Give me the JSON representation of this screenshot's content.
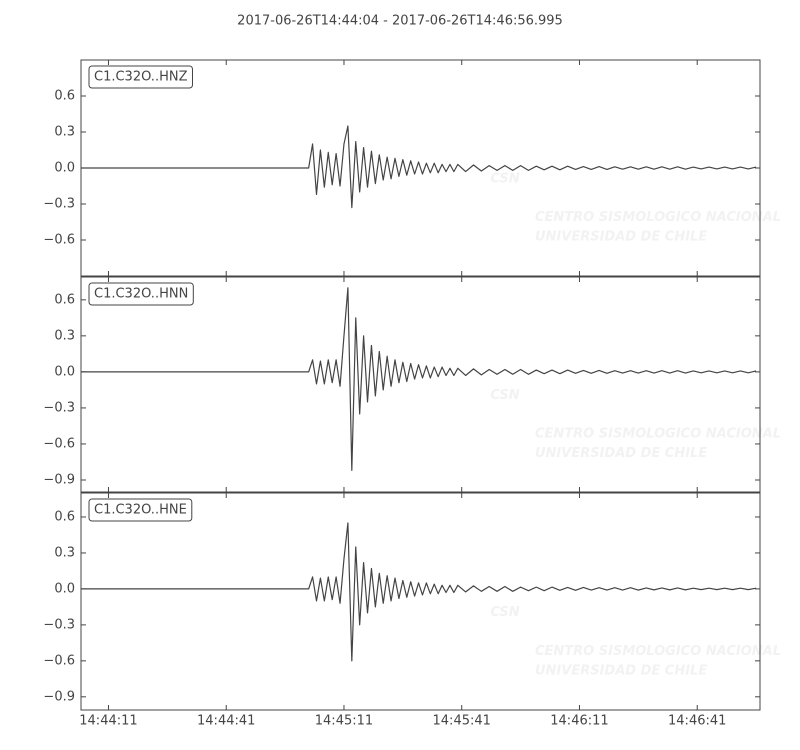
{
  "chart_data": {
    "type": "line",
    "title": "2017-06-26T14:44:04  -  2017-06-26T14:46:56.995",
    "xlim": [
      "14:44:04",
      "14:46:56.995"
    ],
    "xticks": [
      "14:44:11",
      "14:44:41",
      "14:45:11",
      "14:45:41",
      "14:46:11",
      "14:46:41"
    ],
    "watermark": [
      "CSN",
      "CENTRO SISMOLOGICO NACIONAL",
      "UNIVERSIDAD DE CHILE"
    ],
    "x": [
      "14:44:04",
      "14:45:02",
      "14:45:03",
      "14:45:04",
      "14:45:05",
      "14:45:06",
      "14:45:07",
      "14:45:08",
      "14:45:09",
      "14:45:10",
      "14:45:11",
      "14:45:12",
      "14:45:13",
      "14:45:14",
      "14:45:15",
      "14:45:16",
      "14:45:17",
      "14:45:18",
      "14:45:19",
      "14:45:20",
      "14:45:21",
      "14:45:22",
      "14:45:23",
      "14:45:24",
      "14:45:25",
      "14:45:26",
      "14:45:27",
      "14:45:28",
      "14:45:29",
      "14:45:30",
      "14:45:31",
      "14:45:32",
      "14:45:33",
      "14:45:34",
      "14:45:35",
      "14:45:36",
      "14:45:37",
      "14:45:38",
      "14:45:39",
      "14:45:40",
      "14:45:42",
      "14:45:44",
      "14:45:46",
      "14:45:48",
      "14:45:50",
      "14:45:52",
      "14:45:54",
      "14:45:56",
      "14:45:58",
      "14:46:00",
      "14:46:02",
      "14:46:04",
      "14:46:06",
      "14:46:08",
      "14:46:10",
      "14:46:12",
      "14:46:14",
      "14:46:16",
      "14:46:18",
      "14:46:20",
      "14:46:22",
      "14:46:24",
      "14:46:26",
      "14:46:28",
      "14:46:30",
      "14:46:32",
      "14:46:34",
      "14:46:36",
      "14:46:38",
      "14:46:40",
      "14:46:42",
      "14:46:44",
      "14:46:46",
      "14:46:48",
      "14:46:50",
      "14:46:52",
      "14:46:54",
      "14:46:56"
    ],
    "series": [
      {
        "name": "C1.C32O..HNZ",
        "color": "#444444",
        "ylim": [
          -0.9,
          0.9
        ],
        "yticks": [
          {
            "value": -0.6,
            "label": "−0.6"
          },
          {
            "value": -0.3,
            "label": "−0.3"
          },
          {
            "value": 0,
            "label": "0.0"
          },
          0.3,
          0.6
        ],
        "values": [
          0,
          0,
          0.2,
          -0.22,
          0.15,
          -0.16,
          0.13,
          -0.14,
          0.12,
          -0.15,
          0.2,
          0.35,
          -0.33,
          0.22,
          -0.2,
          0.17,
          -0.16,
          0.14,
          -0.13,
          0.11,
          -0.1,
          0.09,
          -0.09,
          0.08,
          -0.07,
          0.07,
          -0.06,
          0.06,
          -0.05,
          0.05,
          -0.05,
          0.04,
          -0.04,
          0.04,
          -0.04,
          0.03,
          -0.03,
          0.03,
          -0.03,
          0.03,
          -0.03,
          0.025,
          -0.025,
          0.02,
          -0.02,
          0.02,
          -0.02,
          0.02,
          -0.02,
          0.015,
          -0.015,
          0.015,
          -0.015,
          0.015,
          -0.012,
          0.012,
          -0.012,
          0.012,
          -0.012,
          0.01,
          -0.01,
          0.01,
          -0.01,
          0.01,
          -0.01,
          0.01,
          -0.01,
          0.01,
          -0.01,
          0.008,
          -0.008,
          0.008,
          -0.008,
          0.008,
          -0.008,
          0.008,
          -0.008,
          0.008
        ]
      },
      {
        "name": "C1.C32O..HNN",
        "color": "#444444",
        "ylim": [
          -1.0,
          0.79
        ],
        "yticks": [
          {
            "value": -0.9,
            "label": "−0.9"
          },
          {
            "value": -0.6,
            "label": "−0.6"
          },
          {
            "value": -0.3,
            "label": "−0.3"
          },
          {
            "value": 0,
            "label": "0.0"
          },
          0.3,
          0.6
        ],
        "values": [
          0,
          0,
          0.1,
          -0.1,
          0.09,
          -0.1,
          0.1,
          -0.09,
          0.1,
          -0.12,
          0.3,
          0.7,
          -0.82,
          0.45,
          -0.35,
          0.3,
          -0.25,
          0.22,
          -0.2,
          0.17,
          -0.15,
          0.13,
          -0.12,
          0.1,
          -0.09,
          0.08,
          -0.08,
          0.07,
          -0.06,
          0.06,
          -0.05,
          0.05,
          -0.05,
          0.04,
          -0.04,
          0.04,
          -0.03,
          0.03,
          -0.03,
          0.03,
          -0.03,
          0.025,
          -0.025,
          0.02,
          -0.02,
          0.02,
          -0.02,
          0.02,
          -0.02,
          0.015,
          -0.015,
          0.015,
          -0.015,
          0.015,
          -0.012,
          0.012,
          -0.012,
          0.012,
          -0.012,
          0.01,
          -0.01,
          0.01,
          -0.01,
          0.01,
          -0.01,
          0.01,
          -0.01,
          0.01,
          -0.01,
          0.008,
          -0.008,
          0.008,
          -0.008,
          0.008,
          -0.008,
          0.008,
          -0.008,
          0.008
        ]
      },
      {
        "name": "C1.C32O..HNE",
        "color": "#444444",
        "ylim": [
          -1.01,
          0.8
        ],
        "yticks": [
          {
            "value": -0.9,
            "label": "−0.9"
          },
          {
            "value": -0.6,
            "label": "−0.6"
          },
          {
            "value": -0.3,
            "label": "−0.3"
          },
          {
            "value": 0,
            "label": "0.0"
          },
          0.3,
          0.6
        ],
        "values": [
          0,
          0,
          0.1,
          -0.1,
          0.09,
          -0.1,
          0.1,
          -0.09,
          0.1,
          -0.12,
          0.25,
          0.55,
          -0.6,
          0.35,
          -0.3,
          0.22,
          -0.2,
          0.17,
          -0.15,
          0.13,
          -0.12,
          0.11,
          -0.1,
          0.09,
          -0.08,
          0.07,
          -0.07,
          0.06,
          -0.06,
          0.05,
          -0.05,
          0.05,
          -0.04,
          0.04,
          -0.04,
          0.03,
          -0.03,
          0.03,
          -0.03,
          0.03,
          -0.025,
          0.025,
          -0.02,
          0.02,
          -0.02,
          0.02,
          -0.02,
          0.015,
          -0.015,
          0.015,
          -0.015,
          0.015,
          -0.012,
          0.012,
          -0.012,
          0.012,
          -0.01,
          0.01,
          -0.01,
          0.01,
          -0.01,
          0.01,
          -0.01,
          0.008,
          -0.008,
          0.008,
          -0.008,
          0.008,
          -0.008,
          0.006,
          -0.006,
          0.006,
          -0.006,
          0.006,
          -0.006,
          0.006,
          -0.006,
          0.006
        ]
      }
    ]
  }
}
